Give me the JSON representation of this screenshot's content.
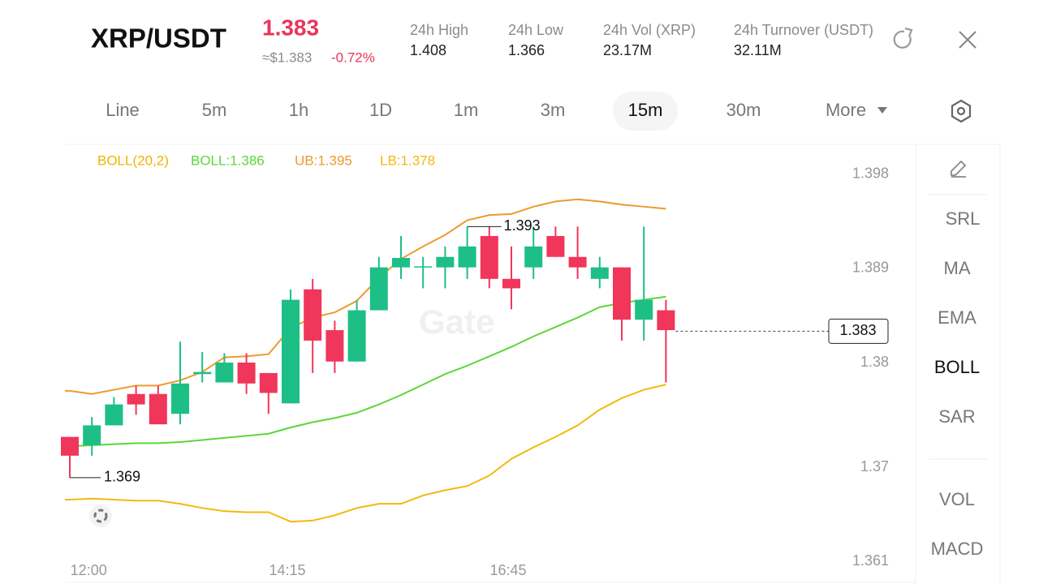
{
  "header": {
    "pair": "XRP/USDT",
    "price": "1.383",
    "usd_price": "≈$1.383",
    "change": "-0.72%",
    "stats": [
      {
        "label": "24h High",
        "value": "1.408"
      },
      {
        "label": "24h Low",
        "value": "1.366"
      },
      {
        "label": "24h Vol (XRP)",
        "value": "23.17M"
      },
      {
        "label": "24h Turnover (USDT)",
        "value": "32.11M"
      }
    ]
  },
  "tabs": [
    "Line",
    "5m",
    "1h",
    "1D",
    "1m",
    "3m",
    "15m",
    "30m",
    "More"
  ],
  "active_tab": "15m",
  "indicators": [
    "SRL",
    "MA",
    "EMA",
    "BOLL",
    "SAR",
    "VOL",
    "MACD"
  ],
  "active_indicator": "BOLL",
  "chart_data": {
    "type": "candlestick",
    "indicator_title": "BOLL(20,2)",
    "indicator_title_color": "#f0b400",
    "watermark": "Gate",
    "categories": [
      null,
      "12:00",
      null,
      null,
      null,
      null,
      null,
      null,
      null,
      null,
      "14:15",
      null,
      null,
      null,
      null,
      null,
      null,
      null,
      null,
      null,
      "16:45",
      null,
      null,
      null,
      null,
      null,
      null,
      null
    ],
    "open": [
      1.3729,
      1.3721,
      1.374,
      1.377,
      1.377,
      1.3751,
      1.3789,
      1.3781,
      1.38,
      1.379,
      1.3761,
      1.387,
      1.3831,
      1.3801,
      1.385,
      1.3891,
      1.3891,
      1.3891,
      1.3891,
      1.3921,
      1.388,
      1.3891,
      1.3921,
      1.3901,
      1.388,
      1.3891,
      1.3841,
      1.385
    ],
    "high": [
      1.3729,
      1.3748,
      1.3767,
      1.3778,
      1.3778,
      1.382,
      1.381,
      1.3809,
      1.3809,
      1.379,
      1.387,
      1.388,
      1.384,
      1.386,
      1.3901,
      1.3921,
      1.3901,
      1.3911,
      1.393,
      1.393,
      1.3911,
      1.393,
      1.393,
      1.393,
      1.3901,
      1.3891,
      1.393,
      1.386
    ],
    "low": [
      1.369,
      1.3711,
      1.374,
      1.375,
      1.3741,
      1.3741,
      1.3781,
      1.3781,
      1.377,
      1.3751,
      1.3761,
      1.379,
      1.379,
      1.3801,
      1.385,
      1.388,
      1.3871,
      1.3871,
      1.388,
      1.3871,
      1.3851,
      1.388,
      1.3901,
      1.388,
      1.3871,
      1.3821,
      1.3821,
      1.3781
    ],
    "close": [
      1.3711,
      1.374,
      1.376,
      1.376,
      1.3741,
      1.378,
      1.3791,
      1.38,
      1.378,
      1.3771,
      1.386,
      1.3821,
      1.3801,
      1.385,
      1.3891,
      1.39,
      1.3892,
      1.3901,
      1.3911,
      1.388,
      1.3871,
      1.3911,
      1.3901,
      1.3891,
      1.3891,
      1.3841,
      1.386,
      1.3831
    ],
    "up_color": "#1dbf86",
    "down_color": "#f0365a",
    "series": [
      {
        "name": "BOLL:1.386",
        "color": "#5bd63a",
        "values": [
          1.372,
          1.3721,
          1.3722,
          1.3723,
          1.3723,
          1.3724,
          1.3726,
          1.3728,
          1.373,
          1.3732,
          1.3738,
          1.3743,
          1.3747,
          1.3752,
          1.376,
          1.3769,
          1.3779,
          1.3789,
          1.3797,
          1.3806,
          1.3815,
          1.3825,
          1.3834,
          1.3843,
          1.3853,
          1.3857,
          1.386,
          1.3863
        ]
      },
      {
        "name": "UB:1.395",
        "color": "#ee9a2e",
        "values": [
          1.3773,
          1.377,
          1.3774,
          1.3778,
          1.3778,
          1.3783,
          1.3791,
          1.3805,
          1.3806,
          1.3808,
          1.3833,
          1.3843,
          1.3848,
          1.3859,
          1.3881,
          1.3899,
          1.3911,
          1.3922,
          1.3936,
          1.3941,
          1.3942,
          1.3949,
          1.3954,
          1.3956,
          1.3954,
          1.3951,
          1.3949,
          1.3947
        ]
      },
      {
        "name": "LB:1.378",
        "color": "#f3b90b",
        "values": [
          1.3669,
          1.367,
          1.3669,
          1.3668,
          1.3668,
          1.3665,
          1.3661,
          1.3658,
          1.3657,
          1.3657,
          1.3648,
          1.3649,
          1.3654,
          1.3661,
          1.3665,
          1.3665,
          1.3673,
          1.3678,
          1.3682,
          1.3692,
          1.3708,
          1.3719,
          1.3729,
          1.374,
          1.3755,
          1.3766,
          1.3774,
          1.3779
        ]
      }
    ],
    "high_label": 1.393,
    "low_label": 1.369,
    "last_price": 1.383,
    "ylim": [
      1.36,
      1.4007
    ],
    "yticks": [
      1.398,
      1.389,
      1.38,
      1.37,
      1.361
    ]
  }
}
